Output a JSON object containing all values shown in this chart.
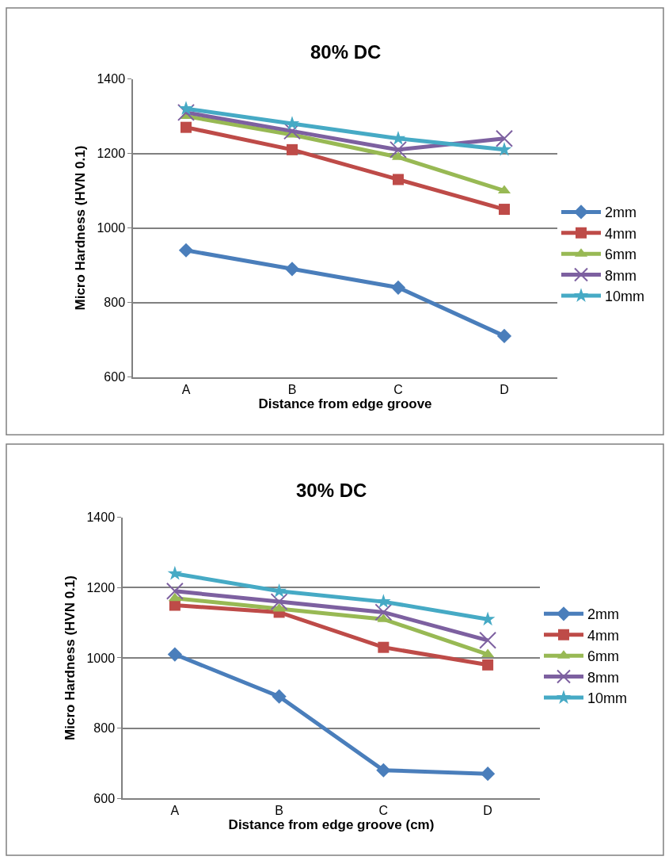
{
  "chart_data": [
    {
      "type": "line",
      "title": "80% DC",
      "xlabel": "Distance from edge groove",
      "ylabel": "Micro Hardness (HVN 0.1)",
      "categories": [
        "A",
        "B",
        "C",
        "D"
      ],
      "ylim": [
        600,
        1400
      ],
      "yticks": [
        600,
        800,
        1000,
        1200,
        1400
      ],
      "grid": "y",
      "legend": "right",
      "series": [
        {
          "name": "2mm",
          "color": "#4a7ebb",
          "marker": "diamond",
          "values": [
            940,
            890,
            840,
            710
          ]
        },
        {
          "name": "4mm",
          "color": "#be4b48",
          "marker": "square",
          "values": [
            1270,
            1210,
            1130,
            1050
          ]
        },
        {
          "name": "6mm",
          "color": "#98b954",
          "marker": "triangle",
          "values": [
            1300,
            1250,
            1190,
            1100
          ]
        },
        {
          "name": "8mm",
          "color": "#7d60a0",
          "marker": "cross",
          "values": [
            1310,
            1260,
            1210,
            1240
          ]
        },
        {
          "name": "10mm",
          "color": "#46aac5",
          "marker": "star",
          "values": [
            1320,
            1280,
            1240,
            1210
          ]
        }
      ]
    },
    {
      "type": "line",
      "title": "30% DC",
      "xlabel": "Distance from edge groove (cm)",
      "ylabel": "Micro Hardness (HVN 0.1)",
      "categories": [
        "A",
        "B",
        "C",
        "D"
      ],
      "ylim": [
        600,
        1400
      ],
      "yticks": [
        600,
        800,
        1000,
        1200,
        1400
      ],
      "grid": "y",
      "legend": "right",
      "series": [
        {
          "name": "2mm",
          "color": "#4a7ebb",
          "marker": "diamond",
          "values": [
            1010,
            890,
            680,
            670
          ]
        },
        {
          "name": "4mm",
          "color": "#be4b48",
          "marker": "square",
          "values": [
            1150,
            1130,
            1030,
            980
          ]
        },
        {
          "name": "6mm",
          "color": "#98b954",
          "marker": "triangle",
          "values": [
            1170,
            1140,
            1110,
            1010
          ]
        },
        {
          "name": "8mm",
          "color": "#7d60a0",
          "marker": "cross",
          "values": [
            1190,
            1160,
            1130,
            1050
          ]
        },
        {
          "name": "10mm",
          "color": "#46aac5",
          "marker": "star",
          "values": [
            1240,
            1190,
            1160,
            1110
          ]
        }
      ]
    }
  ]
}
